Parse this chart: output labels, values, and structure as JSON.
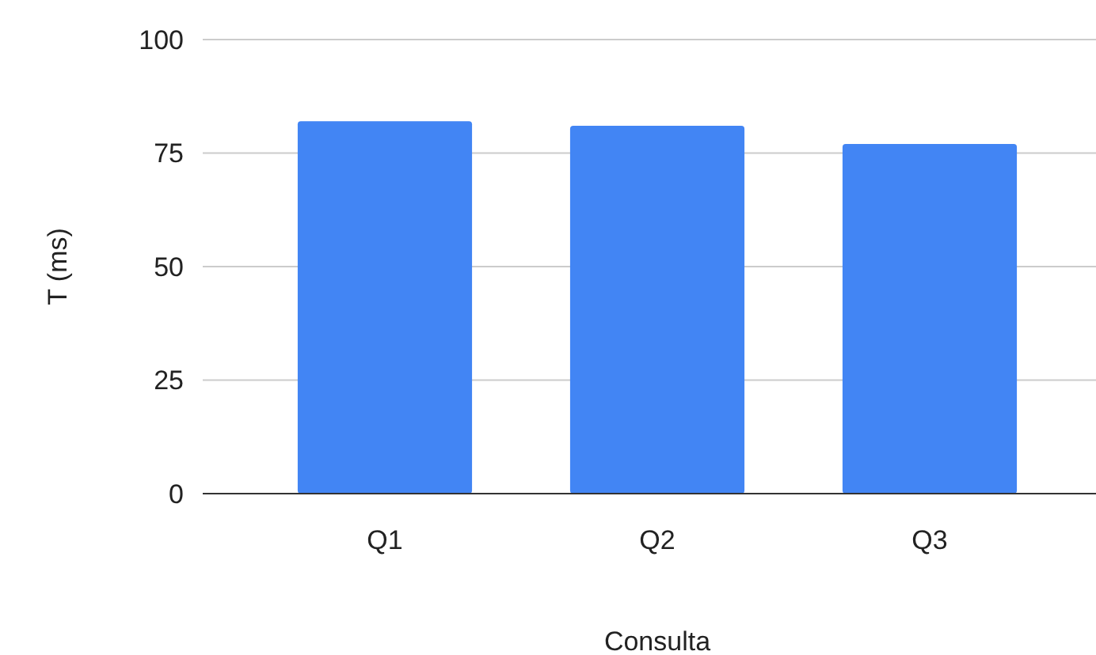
{
  "chart_data": {
    "type": "bar",
    "xlabel": "Consulta",
    "ylabel": "T (ms)",
    "categories": [
      "Q1",
      "Q2",
      "Q3"
    ],
    "values": [
      82,
      81,
      77
    ],
    "color": "#4285f4",
    "ylim": [
      0,
      100
    ],
    "yticks": [
      0,
      25,
      50,
      75,
      100
    ],
    "grid": "y"
  }
}
